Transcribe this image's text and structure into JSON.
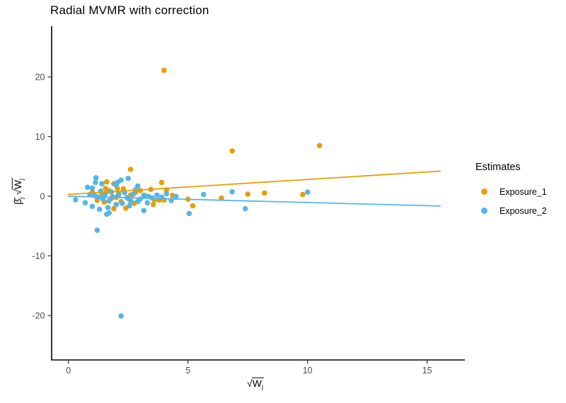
{
  "chart": {
    "title": "Radial MVMR with correction"
  },
  "legend": {
    "title": "Estimates",
    "items": [
      {
        "label": "Exposure_1",
        "color": "#E69F00"
      },
      {
        "label": "Exposure_2",
        "color": "#56B4E9"
      }
    ]
  },
  "axis_labels": {
    "y": {
      "beta": "β̂",
      "beta_sub": "j",
      "radical": "√",
      "radicand": "W",
      "radicand_sub": "j"
    },
    "x": {
      "radical": "√",
      "radicand": "W",
      "radicand_sub": "j"
    }
  },
  "chart_data": {
    "type": "scatter",
    "title": "Radial MVMR with correction",
    "xlabel": "√Wj",
    "ylabel": "β̂j√Wj",
    "xlim": [
      -0.7,
      16.6
    ],
    "ylim": [
      -27.5,
      28.5
    ],
    "x_ticks": [
      0,
      5,
      10,
      15
    ],
    "y_ticks": [
      -20,
      -10,
      0,
      10,
      20
    ],
    "grid": false,
    "legend_position": "right",
    "legend_title": "Estimates",
    "series": [
      {
        "name": "Exposure_1",
        "color": "#E69F00",
        "points": [
          [
            4.0,
            21.1
          ],
          [
            6.85,
            7.6
          ],
          [
            10.5,
            8.5
          ],
          [
            9.8,
            0.3
          ],
          [
            2.6,
            4.5
          ],
          [
            3.9,
            2.3
          ],
          [
            5.0,
            -0.5
          ],
          [
            5.2,
            -1.6
          ],
          [
            6.4,
            -0.3
          ],
          [
            7.5,
            0.35
          ],
          [
            8.2,
            0.55
          ],
          [
            4.1,
            1.05
          ],
          [
            4.35,
            0.15
          ],
          [
            3.45,
            1.15
          ],
          [
            3.6,
            -0.65
          ],
          [
            3.8,
            -0.65
          ],
          [
            4.0,
            -0.65
          ],
          [
            3.55,
            -1.4
          ],
          [
            2.75,
            -1.2
          ],
          [
            2.4,
            -2.0
          ],
          [
            1.9,
            2.1
          ],
          [
            1.6,
            2.4
          ],
          [
            1.0,
            0.7
          ],
          [
            1.2,
            -0.7
          ],
          [
            2.0,
            -0.2
          ],
          [
            1.9,
            -2.1
          ],
          [
            1.4,
            0.3
          ],
          [
            1.7,
            0.95
          ],
          [
            2.1,
            0.55
          ],
          [
            2.3,
            1.25
          ],
          [
            2.5,
            -0.4
          ],
          [
            2.6,
            0.2
          ],
          [
            1.5,
            -1.0
          ],
          [
            1.8,
            -0.35
          ],
          [
            2.2,
            -0.9
          ],
          [
            2.8,
            0.6
          ],
          [
            3.0,
            0.95
          ],
          [
            3.2,
            0.1
          ],
          [
            1.55,
            1.3
          ],
          [
            2.05,
            1.3
          ]
        ]
      },
      {
        "name": "Exposure_2",
        "color": "#56B4E9",
        "points": [
          [
            2.2,
            -20.1
          ],
          [
            1.2,
            -5.7
          ],
          [
            1.7,
            -2.8
          ],
          [
            10.0,
            0.7
          ],
          [
            5.05,
            -2.9
          ],
          [
            5.65,
            0.3
          ],
          [
            6.85,
            0.75
          ],
          [
            7.4,
            -2.1
          ],
          [
            1.15,
            3.1
          ],
          [
            2.5,
            3.0
          ],
          [
            2.9,
            1.7
          ],
          [
            2.05,
            2.3
          ],
          [
            2.8,
            1.05
          ],
          [
            3.15,
            0.15
          ],
          [
            3.35,
            -0.05
          ],
          [
            4.5,
            -0.05
          ],
          [
            2.45,
            -0.25
          ],
          [
            2.6,
            -0.8
          ],
          [
            2.25,
            -1.2
          ],
          [
            3.15,
            -2.4
          ],
          [
            1.4,
            2.1
          ],
          [
            0.8,
            1.5
          ],
          [
            0.3,
            -0.6
          ],
          [
            0.7,
            -1.1
          ],
          [
            1.0,
            -1.7
          ],
          [
            1.3,
            -2.2
          ],
          [
            1.6,
            -3.0
          ],
          [
            2.0,
            -1.4
          ],
          [
            1.7,
            -0.8
          ],
          [
            1.5,
            0.0
          ],
          [
            1.8,
            0.7
          ],
          [
            2.0,
            1.9
          ],
          [
            2.2,
            2.7
          ],
          [
            1.13,
            2.3
          ],
          [
            1.0,
            1.35
          ],
          [
            0.9,
            0.3
          ],
          [
            1.1,
            0.1
          ],
          [
            1.25,
            -0.15
          ],
          [
            1.45,
            -0.5
          ],
          [
            1.55,
            0.45
          ],
          [
            1.85,
            -0.1
          ],
          [
            2.1,
            0.2
          ],
          [
            2.35,
            0.6
          ],
          [
            2.55,
            -1.6
          ],
          [
            2.7,
            0.3
          ],
          [
            3.0,
            -0.5
          ],
          [
            3.3,
            -1.1
          ],
          [
            3.5,
            -0.3
          ],
          [
            3.7,
            0.2
          ],
          [
            3.9,
            -0.15
          ],
          [
            4.1,
            0.4
          ],
          [
            4.3,
            -0.7
          ],
          [
            1.95,
            2.0
          ],
          [
            1.35,
            0.85
          ],
          [
            1.65,
            -1.9
          ],
          [
            2.9,
            -0.9
          ]
        ]
      }
    ],
    "lines": [
      {
        "name": "Exposure_1",
        "color": "#E69F00",
        "x1": 0,
        "y1": 0.3,
        "x2": 15.55,
        "y2": 4.2
      },
      {
        "name": "Exposure_2",
        "color": "#56B4E9",
        "x1": 0,
        "y1": 0.0,
        "x2": 15.55,
        "y2": -1.65
      }
    ]
  }
}
